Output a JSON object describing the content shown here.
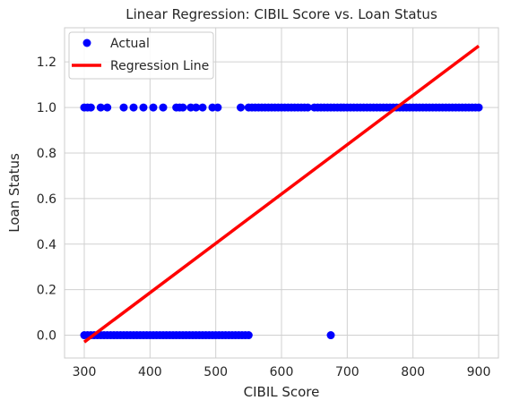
{
  "chart_data": {
    "type": "scatter",
    "title": "Linear Regression: CIBIL Score vs. Loan Status",
    "xlabel": "CIBIL Score",
    "ylabel": "Loan Status",
    "xlim": [
      270,
      930
    ],
    "ylim": [
      -0.1,
      1.35
    ],
    "xticks": [
      "300",
      "400",
      "500",
      "600",
      "700",
      "800",
      "900"
    ],
    "yticks": [
      "0.0",
      "0.2",
      "0.4",
      "0.6",
      "0.8",
      "1.0",
      "1.2"
    ],
    "grid": true,
    "legend_position": "top-left",
    "colors": {
      "actual": "#0000ff",
      "regression": "#ff0000",
      "grid": "#d0d0d0",
      "frame": "#cccccc"
    },
    "series": [
      {
        "name": "Actual",
        "kind": "scatter",
        "points": [
          [
            300,
            1
          ],
          [
            305,
            1
          ],
          [
            310,
            1
          ],
          [
            325,
            1
          ],
          [
            335,
            1
          ],
          [
            360,
            1
          ],
          [
            375,
            1
          ],
          [
            390,
            1
          ],
          [
            405,
            1
          ],
          [
            420,
            1
          ],
          [
            440,
            1
          ],
          [
            445,
            1
          ],
          [
            450,
            1
          ],
          [
            462,
            1
          ],
          [
            470,
            1
          ],
          [
            480,
            1
          ],
          [
            495,
            1
          ],
          [
            503,
            1
          ],
          [
            538,
            1
          ],
          [
            550,
            1
          ],
          [
            555,
            1
          ],
          [
            560,
            1
          ],
          [
            565,
            1
          ],
          [
            570,
            1
          ],
          [
            575,
            1
          ],
          [
            580,
            1
          ],
          [
            585,
            1
          ],
          [
            590,
            1
          ],
          [
            595,
            1
          ],
          [
            600,
            1
          ],
          [
            605,
            1
          ],
          [
            610,
            1
          ],
          [
            615,
            1
          ],
          [
            620,
            1
          ],
          [
            625,
            1
          ],
          [
            630,
            1
          ],
          [
            635,
            1
          ],
          [
            640,
            1
          ],
          [
            650,
            1
          ],
          [
            655,
            1
          ],
          [
            660,
            1
          ],
          [
            665,
            1
          ],
          [
            670,
            1
          ],
          [
            675,
            1
          ],
          [
            680,
            1
          ],
          [
            685,
            1
          ],
          [
            690,
            1
          ],
          [
            695,
            1
          ],
          [
            700,
            1
          ],
          [
            705,
            1
          ],
          [
            710,
            1
          ],
          [
            715,
            1
          ],
          [
            720,
            1
          ],
          [
            725,
            1
          ],
          [
            730,
            1
          ],
          [
            735,
            1
          ],
          [
            740,
            1
          ],
          [
            745,
            1
          ],
          [
            750,
            1
          ],
          [
            755,
            1
          ],
          [
            760,
            1
          ],
          [
            765,
            1
          ],
          [
            770,
            1
          ],
          [
            775,
            1
          ],
          [
            780,
            1
          ],
          [
            785,
            1
          ],
          [
            790,
            1
          ],
          [
            795,
            1
          ],
          [
            800,
            1
          ],
          [
            805,
            1
          ],
          [
            810,
            1
          ],
          [
            815,
            1
          ],
          [
            820,
            1
          ],
          [
            825,
            1
          ],
          [
            830,
            1
          ],
          [
            835,
            1
          ],
          [
            840,
            1
          ],
          [
            845,
            1
          ],
          [
            850,
            1
          ],
          [
            855,
            1
          ],
          [
            860,
            1
          ],
          [
            865,
            1
          ],
          [
            870,
            1
          ],
          [
            875,
            1
          ],
          [
            880,
            1
          ],
          [
            885,
            1
          ],
          [
            890,
            1
          ],
          [
            895,
            1
          ],
          [
            900,
            1
          ],
          [
            300,
            0
          ],
          [
            305,
            0
          ],
          [
            310,
            0
          ],
          [
            315,
            0
          ],
          [
            320,
            0
          ],
          [
            325,
            0
          ],
          [
            330,
            0
          ],
          [
            335,
            0
          ],
          [
            340,
            0
          ],
          [
            345,
            0
          ],
          [
            350,
            0
          ],
          [
            355,
            0
          ],
          [
            360,
            0
          ],
          [
            365,
            0
          ],
          [
            370,
            0
          ],
          [
            375,
            0
          ],
          [
            380,
            0
          ],
          [
            385,
            0
          ],
          [
            390,
            0
          ],
          [
            395,
            0
          ],
          [
            400,
            0
          ],
          [
            405,
            0
          ],
          [
            410,
            0
          ],
          [
            415,
            0
          ],
          [
            420,
            0
          ],
          [
            425,
            0
          ],
          [
            430,
            0
          ],
          [
            435,
            0
          ],
          [
            440,
            0
          ],
          [
            445,
            0
          ],
          [
            450,
            0
          ],
          [
            455,
            0
          ],
          [
            460,
            0
          ],
          [
            465,
            0
          ],
          [
            470,
            0
          ],
          [
            475,
            0
          ],
          [
            480,
            0
          ],
          [
            485,
            0
          ],
          [
            490,
            0
          ],
          [
            495,
            0
          ],
          [
            500,
            0
          ],
          [
            505,
            0
          ],
          [
            510,
            0
          ],
          [
            515,
            0
          ],
          [
            520,
            0
          ],
          [
            525,
            0
          ],
          [
            530,
            0
          ],
          [
            535,
            0
          ],
          [
            540,
            0
          ],
          [
            545,
            0
          ],
          [
            550,
            0
          ],
          [
            675,
            0
          ]
        ]
      },
      {
        "name": "Regression Line",
        "kind": "line",
        "points": [
          [
            300,
            -0.03
          ],
          [
            900,
            1.27
          ]
        ]
      }
    ]
  }
}
